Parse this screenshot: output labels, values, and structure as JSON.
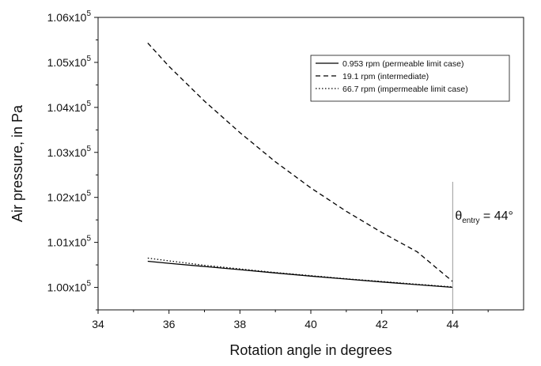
{
  "chart_data": {
    "type": "line",
    "xlabel": "Rotation angle in degrees",
    "ylabel": "Air pressure, in Pa",
    "xlim": [
      34,
      46
    ],
    "ylim": [
      99500,
      106000
    ],
    "x_ticks": [
      {
        "value": 34,
        "label": "34"
      },
      {
        "value": 36,
        "label": "36"
      },
      {
        "value": 38,
        "label": "38"
      },
      {
        "value": 40,
        "label": "40"
      },
      {
        "value": 42,
        "label": "42"
      },
      {
        "value": 44,
        "label": "44"
      }
    ],
    "y_ticks": [
      {
        "value": 100000,
        "mantissa": "1.00x10",
        "exp": "5"
      },
      {
        "value": 101000,
        "mantissa": "1.01x10",
        "exp": "5"
      },
      {
        "value": 102000,
        "mantissa": "1.02x10",
        "exp": "5"
      },
      {
        "value": 103000,
        "mantissa": "1.03x10",
        "exp": "5"
      },
      {
        "value": 104000,
        "mantissa": "1.04x10",
        "exp": "5"
      },
      {
        "value": 105000,
        "mantissa": "1.05x10",
        "exp": "5"
      },
      {
        "value": 106000,
        "mantissa": "1.06x10",
        "exp": "5"
      }
    ],
    "legend_position": "top-right",
    "series": [
      {
        "name": "0.953 rpm (permeable limit case)",
        "style": "solid",
        "color": "#000000",
        "x": [
          35.4,
          36,
          37,
          38,
          39,
          40,
          41,
          42,
          43,
          44
        ],
        "y": [
          100580,
          100535,
          100465,
          100395,
          100320,
          100250,
          100185,
          100120,
          100060,
          100000
        ]
      },
      {
        "name": "19.1 rpm (intermediate)",
        "style": "dashed",
        "color": "#000000",
        "x": [
          35.4,
          36,
          37,
          38,
          39,
          40,
          41,
          42,
          43,
          44
        ],
        "y": [
          105430,
          104910,
          104140,
          103440,
          102790,
          102210,
          101690,
          101220,
          100790,
          100130
        ]
      },
      {
        "name": "66.7 rpm (impermeable limit case)",
        "style": "dotted",
        "color": "#000000",
        "x": [
          35.4,
          36,
          37,
          38,
          39,
          40,
          41,
          42,
          43,
          44
        ],
        "y": [
          100650,
          100590,
          100490,
          100410,
          100330,
          100260,
          100190,
          100130,
          100070,
          100010
        ]
      }
    ],
    "annotation": {
      "x": 44,
      "symbol": "θ",
      "subscript": "entry",
      "text": " = 44°"
    }
  }
}
